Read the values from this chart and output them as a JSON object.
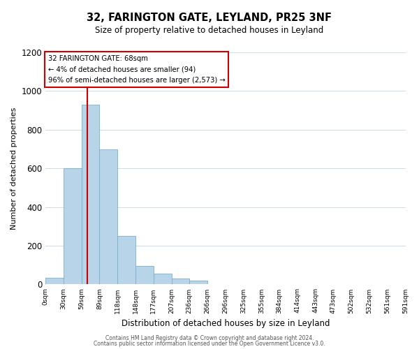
{
  "title": "32, FARINGTON GATE, LEYLAND, PR25 3NF",
  "subtitle": "Size of property relative to detached houses in Leyland",
  "xlabel": "Distribution of detached houses by size in Leyland",
  "ylabel": "Number of detached properties",
  "bar_color": "#b8d4e8",
  "bar_edge_color": "#7aafcc",
  "background_color": "#ffffff",
  "grid_color": "#ccdce8",
  "annotation_box_color": "#ffffff",
  "annotation_box_edge": "#cc0000",
  "vertical_line_color": "#cc0000",
  "bin_width": 29.5,
  "bin_starts": [
    0,
    29.5,
    59,
    88.5,
    118,
    147.5,
    177,
    206.5,
    236,
    265.5,
    295,
    324.5,
    354,
    383.5,
    413,
    442.5,
    472,
    501.5,
    531,
    560.5
  ],
  "bin_labels": [
    "0sqm",
    "30sqm",
    "59sqm",
    "89sqm",
    "118sqm",
    "148sqm",
    "177sqm",
    "207sqm",
    "236sqm",
    "266sqm",
    "296sqm",
    "325sqm",
    "355sqm",
    "384sqm",
    "414sqm",
    "443sqm",
    "473sqm",
    "502sqm",
    "532sqm",
    "561sqm",
    "591sqm"
  ],
  "counts": [
    35,
    600,
    930,
    700,
    250,
    95,
    55,
    32,
    20,
    0,
    0,
    0,
    0,
    0,
    0,
    0,
    0,
    0,
    0,
    0
  ],
  "vertical_line_x": 68,
  "annotation_text_line1": "32 FARINGTON GATE: 68sqm",
  "annotation_text_line2": "← 4% of detached houses are smaller (94)",
  "annotation_text_line3": "96% of semi-detached houses are larger (2,573) →",
  "ylim": [
    0,
    1200
  ],
  "yticks": [
    0,
    200,
    400,
    600,
    800,
    1000,
    1200
  ],
  "footer_line1": "Contains HM Land Registry data © Crown copyright and database right 2024.",
  "footer_line2": "Contains public sector information licensed under the Open Government Licence v3.0."
}
